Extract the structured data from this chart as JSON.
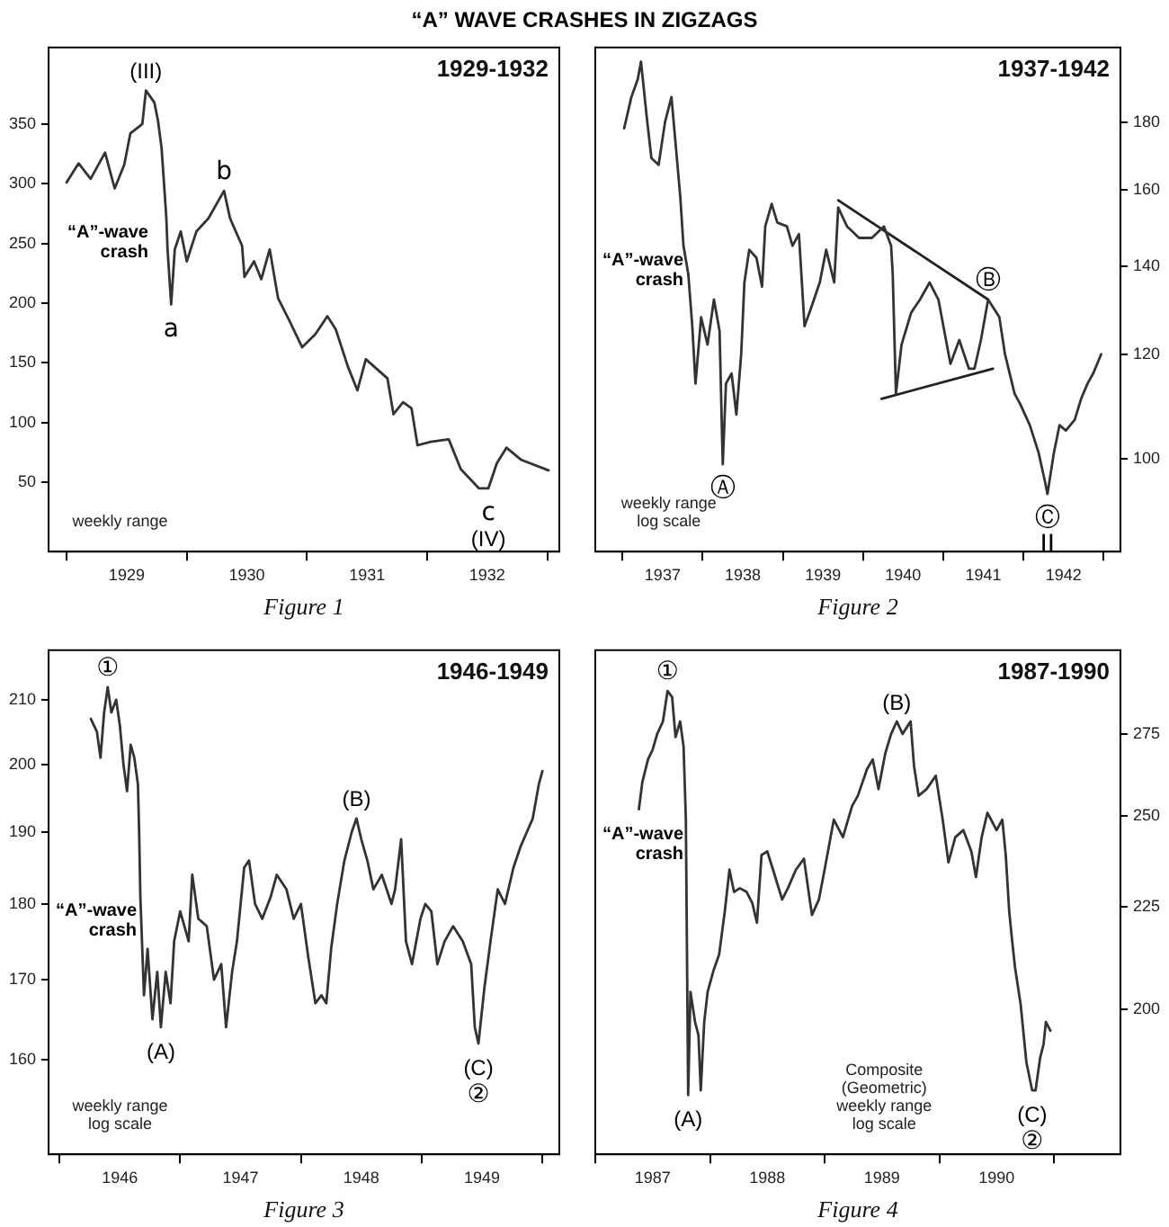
{
  "chart_data": [
    {
      "type": "line",
      "title": "“A” WAVE CRASHES IN ZIGZAGS",
      "subtitle": "1929-1932",
      "xlabel": "Figure 1",
      "series": [
        {
          "color": "#333333",
          "x": [
            1929.0,
            1929.1,
            1929.2,
            1929.32,
            1929.4,
            1929.48,
            1929.53,
            1929.63,
            1929.66,
            1929.73,
            1929.76,
            1929.79,
            1929.81,
            1929.83,
            1929.84,
            1929.87,
            1929.9,
            1929.95,
            1930.0,
            1930.08,
            1930.18,
            1930.31,
            1930.36,
            1930.46,
            1930.48,
            1930.56,
            1930.62,
            1930.69,
            1930.76,
            1930.86,
            1930.96,
            1931.07,
            1931.17,
            1931.24,
            1931.34,
            1931.42,
            1931.49,
            1931.67,
            1931.72,
            1931.8,
            1931.87,
            1931.92,
            1932.03,
            1932.18,
            1932.28,
            1932.43,
            1932.51,
            1932.58,
            1932.66,
            1932.78,
            1933.01
          ],
          "values": [
            301,
            317,
            304,
            326,
            296,
            316,
            342,
            350,
            378,
            368,
            353,
            330,
            301,
            271,
            245,
            199,
            245,
            260,
            235,
            260,
            271,
            294,
            271,
            248,
            222,
            235,
            220,
            245,
            204,
            184,
            163,
            174,
            189,
            178,
            147,
            127,
            153,
            137,
            107,
            117,
            112,
            81,
            84,
            86,
            61,
            45,
            45,
            66,
            79,
            69,
            60
          ]
        }
      ],
      "xlim": [
        1928.85,
        1933.1
      ],
      "xticks": [
        {
          "value": 1929,
          "label": null
        },
        {
          "value": 1929.5,
          "label": "1929"
        },
        {
          "value": 1930,
          "label": null
        },
        {
          "value": 1930.5,
          "label": "1930"
        },
        {
          "value": 1931,
          "label": null
        },
        {
          "value": 1931.5,
          "label": "1931"
        },
        {
          "value": 1932,
          "label": null
        },
        {
          "value": 1932.5,
          "label": "1932"
        },
        {
          "value": 1933,
          "label": null
        }
      ],
      "ylim": [
        -8,
        414
      ],
      "yticks": [
        50,
        100,
        150,
        200,
        250,
        300,
        350
      ],
      "annotations": [
        {
          "text": "(III)",
          "x": 1929.66,
          "y": 378
        },
        {
          "text": "“A”-wave crash",
          "x": 1929.83,
          "y": 271
        },
        {
          "text": "a",
          "x": 1929.87,
          "y": 199
        },
        {
          "text": "b",
          "x": 1930.31,
          "y": 294
        },
        {
          "text": "c",
          "x": 1932.51,
          "y": 45
        },
        {
          "text": "(IV)",
          "x": 1932.51,
          "y": 45
        },
        "weekly range"
      ]
    },
    {
      "type": "line",
      "subtitle": "1937-1942",
      "xlabel": "Figure 2",
      "log": true,
      "series": [
        {
          "color": "#333333",
          "x": [
            1937.02,
            1937.11,
            1937.19,
            1937.23,
            1937.3,
            1937.36,
            1937.45,
            1937.53,
            1937.61,
            1937.67,
            1937.72,
            1937.76,
            1937.82,
            1937.87,
            1937.91,
            1937.98,
            1938.06,
            1938.14,
            1938.21,
            1938.25,
            1938.29,
            1938.36,
            1938.42,
            1938.48,
            1938.52,
            1938.58,
            1938.67,
            1938.74,
            1938.78,
            1938.86,
            1938.93,
            1939.05,
            1939.12,
            1939.2,
            1939.27,
            1939.35,
            1939.46,
            1939.54,
            1939.64,
            1939.69,
            1939.8,
            1939.95,
            1940.11,
            1940.26,
            1940.35,
            1940.37,
            1940.41,
            1940.48,
            1940.6,
            1940.71,
            1940.83,
            1940.94,
            1941.09,
            1941.2,
            1941.32,
            1941.39,
            1941.47,
            1941.56,
            1941.7,
            1941.77,
            1941.89,
            1941.96,
            1942.08,
            1942.19,
            1942.27,
            1942.3,
            1942.38,
            1942.45,
            1942.53,
            1942.64,
            1942.72,
            1942.8,
            1942.87,
            1942.97
          ],
          "values": [
            178,
            188,
            194,
            200,
            182,
            169,
            167,
            180,
            188,
            171,
            158,
            145,
            138,
            126,
            114,
            128,
            122,
            132,
            125,
            99,
            114,
            116,
            108,
            120,
            136,
            144,
            142,
            135,
            150,
            156,
            151,
            150,
            145,
            148,
            126,
            130,
            136,
            144,
            136,
            155,
            150,
            147,
            147,
            150,
            145,
            138,
            112,
            122,
            129,
            132,
            136,
            132,
            118,
            123,
            117,
            117,
            123,
            132,
            128,
            120,
            112,
            110,
            106,
            101,
            96,
            94,
            101,
            106,
            105,
            107,
            111,
            114,
            116,
            120
          ]
        },
        {
          "type": "line",
          "color": "#222222",
          "x": [
            1939.69,
            1941.56
          ],
          "values": [
            157,
            132
          ]
        },
        {
          "type": "line",
          "color": "#222222",
          "x": [
            1940.23,
            1941.62
          ],
          "values": [
            111,
            117
          ]
        }
      ],
      "xlim": [
        1936.66,
        1943.21
      ],
      "xticks": [
        {
          "value": 1937,
          "label": null
        },
        {
          "value": 1937.5,
          "label": "1937"
        },
        {
          "value": 1938,
          "label": null
        },
        {
          "value": 1938.5,
          "label": "1938"
        },
        {
          "value": 1939,
          "label": null
        },
        {
          "value": 1939.5,
          "label": "1939"
        },
        {
          "value": 1940,
          "label": null
        },
        {
          "value": 1940.5,
          "label": "1940"
        },
        {
          "value": 1941,
          "label": null
        },
        {
          "value": 1941.5,
          "label": "1941"
        },
        {
          "value": 1942,
          "label": null
        },
        {
          "value": 1942.5,
          "label": "1942"
        },
        {
          "value": 1943,
          "label": null
        }
      ],
      "ylim": [
        85,
        205
      ],
      "yticks": [
        100,
        120,
        140,
        160,
        180
      ],
      "annotations": [
        {
          "text": "“A”-wave crash",
          "x": 1937.76,
          "y": 145
        },
        {
          "text": "Ⓐ",
          "x": 1938.25,
          "y": 99
        },
        {
          "text": "Ⓑ",
          "x": 1941.56,
          "y": 132
        },
        {
          "text": "Ⓒ",
          "x": 1942.3,
          "y": 94
        },
        {
          "text": "II",
          "x": 1942.3,
          "y": 94
        },
        "weekly range",
        "log scale"
      ]
    },
    {
      "type": "line",
      "subtitle": "1946-1949",
      "xlabel": "Figure 3",
      "log": true,
      "series": [
        {
          "color": "#333333",
          "x": [
            1946.26,
            1946.31,
            1946.34,
            1946.37,
            1946.4,
            1946.43,
            1946.47,
            1946.5,
            1946.53,
            1946.56,
            1946.59,
            1946.62,
            1946.65,
            1946.66,
            1946.67,
            1946.7,
            1946.73,
            1946.77,
            1946.81,
            1946.84,
            1946.88,
            1946.92,
            1946.95,
            1947.0,
            1947.07,
            1947.1,
            1947.15,
            1947.22,
            1947.28,
            1947.34,
            1947.38,
            1947.43,
            1947.47,
            1947.53,
            1947.57,
            1947.62,
            1947.68,
            1947.75,
            1947.8,
            1947.88,
            1947.94,
            1948.0,
            1948.06,
            1948.12,
            1948.17,
            1948.21,
            1948.25,
            1948.3,
            1948.36,
            1948.42,
            1948.46,
            1948.5,
            1948.55,
            1948.6,
            1948.67,
            1948.75,
            1948.78,
            1948.83,
            1948.87,
            1948.92,
            1948.99,
            1949.03,
            1949.08,
            1949.13,
            1949.19,
            1949.26,
            1949.34,
            1949.41,
            1949.44,
            1949.47,
            1949.52,
            1949.57,
            1949.63,
            1949.69,
            1949.76,
            1949.82,
            1949.87,
            1949.92,
            1949.97,
            1950.0
          ],
          "values": [
            207,
            205,
            201,
            208,
            212,
            208,
            210,
            206,
            200,
            196,
            203,
            201,
            197,
            190,
            181,
            168,
            174,
            165,
            171,
            164,
            171,
            167,
            175,
            179,
            175,
            184,
            178,
            177,
            170,
            172,
            164,
            171,
            175,
            185,
            186,
            180,
            178,
            181,
            184,
            182,
            178,
            180,
            173,
            167,
            168,
            167,
            174,
            180,
            186,
            190,
            192,
            189,
            186,
            182,
            184,
            180,
            182,
            189,
            175,
            172,
            178,
            180,
            179,
            172,
            175,
            177,
            175,
            172,
            164,
            162,
            169,
            175,
            182,
            180,
            185,
            188,
            190,
            192,
            197,
            199
          ]
        }
      ],
      "xlim": [
        1945.91,
        1950.14
      ],
      "xticks": [
        {
          "value": 1946,
          "label": null
        },
        {
          "value": 1946.5,
          "label": "1946"
        },
        {
          "value": 1947,
          "label": null
        },
        {
          "value": 1947.5,
          "label": "1947"
        },
        {
          "value": 1948,
          "label": null
        },
        {
          "value": 1948.5,
          "label": "1948"
        },
        {
          "value": 1949,
          "label": null
        },
        {
          "value": 1949.5,
          "label": "1949"
        },
        {
          "value": 1950,
          "label": null
        }
      ],
      "ylim": [
        149,
        218
      ],
      "yticks": [
        160,
        170,
        180,
        190,
        200,
        210
      ],
      "annotations": [
        {
          "text": "①",
          "x": 1946.4,
          "y": 212
        },
        {
          "text": "“A”-wave crash",
          "x": 1946.67,
          "y": 181
        },
        {
          "text": "(A)",
          "x": 1946.84,
          "y": 164
        },
        {
          "text": "(B)",
          "x": 1948.46,
          "y": 192
        },
        {
          "text": "(C)",
          "x": 1949.47,
          "y": 162
        },
        {
          "text": "②",
          "x": 1949.47,
          "y": 162
        },
        "weekly range",
        "log scale"
      ]
    },
    {
      "type": "line",
      "subtitle": "1987-1990",
      "xlabel": "Figure 4",
      "log": true,
      "series": [
        {
          "color": "#333333",
          "x": [
            1987.38,
            1987.41,
            1987.46,
            1987.5,
            1987.54,
            1987.59,
            1987.63,
            1987.67,
            1987.7,
            1987.74,
            1987.77,
            1987.79,
            1987.81,
            1987.83,
            1987.87,
            1987.9,
            1987.92,
            1987.95,
            1987.98,
            1988.03,
            1988.08,
            1988.13,
            1988.17,
            1988.21,
            1988.26,
            1988.32,
            1988.37,
            1988.41,
            1988.45,
            1988.5,
            1988.55,
            1988.63,
            1988.68,
            1988.75,
            1988.82,
            1988.87,
            1988.89,
            1988.95,
            1989.0,
            1989.08,
            1989.16,
            1989.24,
            1989.29,
            1989.37,
            1989.42,
            1989.47,
            1989.53,
            1989.58,
            1989.63,
            1989.68,
            1989.75,
            1989.78,
            1989.82,
            1989.89,
            1989.97,
            1990.03,
            1990.08,
            1990.14,
            1990.21,
            1990.28,
            1990.32,
            1990.37,
            1990.42,
            1990.5,
            1990.55,
            1990.58,
            1990.61,
            1990.63,
            1990.66,
            1990.71,
            1990.76,
            1990.81,
            1990.84,
            1990.88,
            1990.91,
            1990.93,
            1990.97
          ],
          "values": [
            252,
            260,
            267,
            270,
            275,
            279,
            289,
            287,
            274,
            279,
            271,
            249,
            181,
            204,
            197,
            194,
            182,
            197,
            204,
            209,
            213,
            224,
            235,
            229,
            230,
            229,
            226,
            221,
            239,
            240,
            235,
            227,
            230,
            235,
            238,
            227,
            223,
            227,
            235,
            249,
            244,
            253,
            256,
            264,
            267,
            258,
            269,
            275,
            279,
            275,
            279,
            265,
            256,
            258,
            262,
            249,
            237,
            244,
            246,
            240,
            233,
            244,
            251,
            246,
            249,
            239,
            224,
            218,
            210,
            201,
            188,
            182,
            182,
            189,
            192,
            197,
            195
          ]
        }
      ],
      "xlim": [
        1987.0,
        1991.58
      ],
      "xticks": [
        {
          "value": 1987,
          "label": null
        },
        {
          "value": 1987.5,
          "label": "1987"
        },
        {
          "value": 1988,
          "label": null
        },
        {
          "value": 1988.5,
          "label": "1988"
        },
        {
          "value": 1989,
          "label": null
        },
        {
          "value": 1989.5,
          "label": "1989"
        },
        {
          "value": 1990,
          "label": null
        },
        {
          "value": 1990.5,
          "label": "1990"
        },
        {
          "value": 1991,
          "label": null
        }
      ],
      "ylim": [
        169,
        303
      ],
      "yticks": [
        200,
        225,
        250,
        275
      ],
      "annotations": [
        {
          "text": "①",
          "x": 1987.63,
          "y": 289
        },
        {
          "text": "“A”-wave crash",
          "x": 1987.79,
          "y": 249
        },
        {
          "text": "(A)",
          "x": 1987.81,
          "y": 181
        },
        {
          "text": "(B)",
          "x": 1989.63,
          "y": 279
        },
        {
          "text": "(C)",
          "x": 1990.81,
          "y": 182
        },
        {
          "text": "②",
          "x": 1990.81,
          "y": 182
        },
        "Composite",
        "(Geometric)",
        "weekly range",
        "log scale"
      ]
    }
  ]
}
